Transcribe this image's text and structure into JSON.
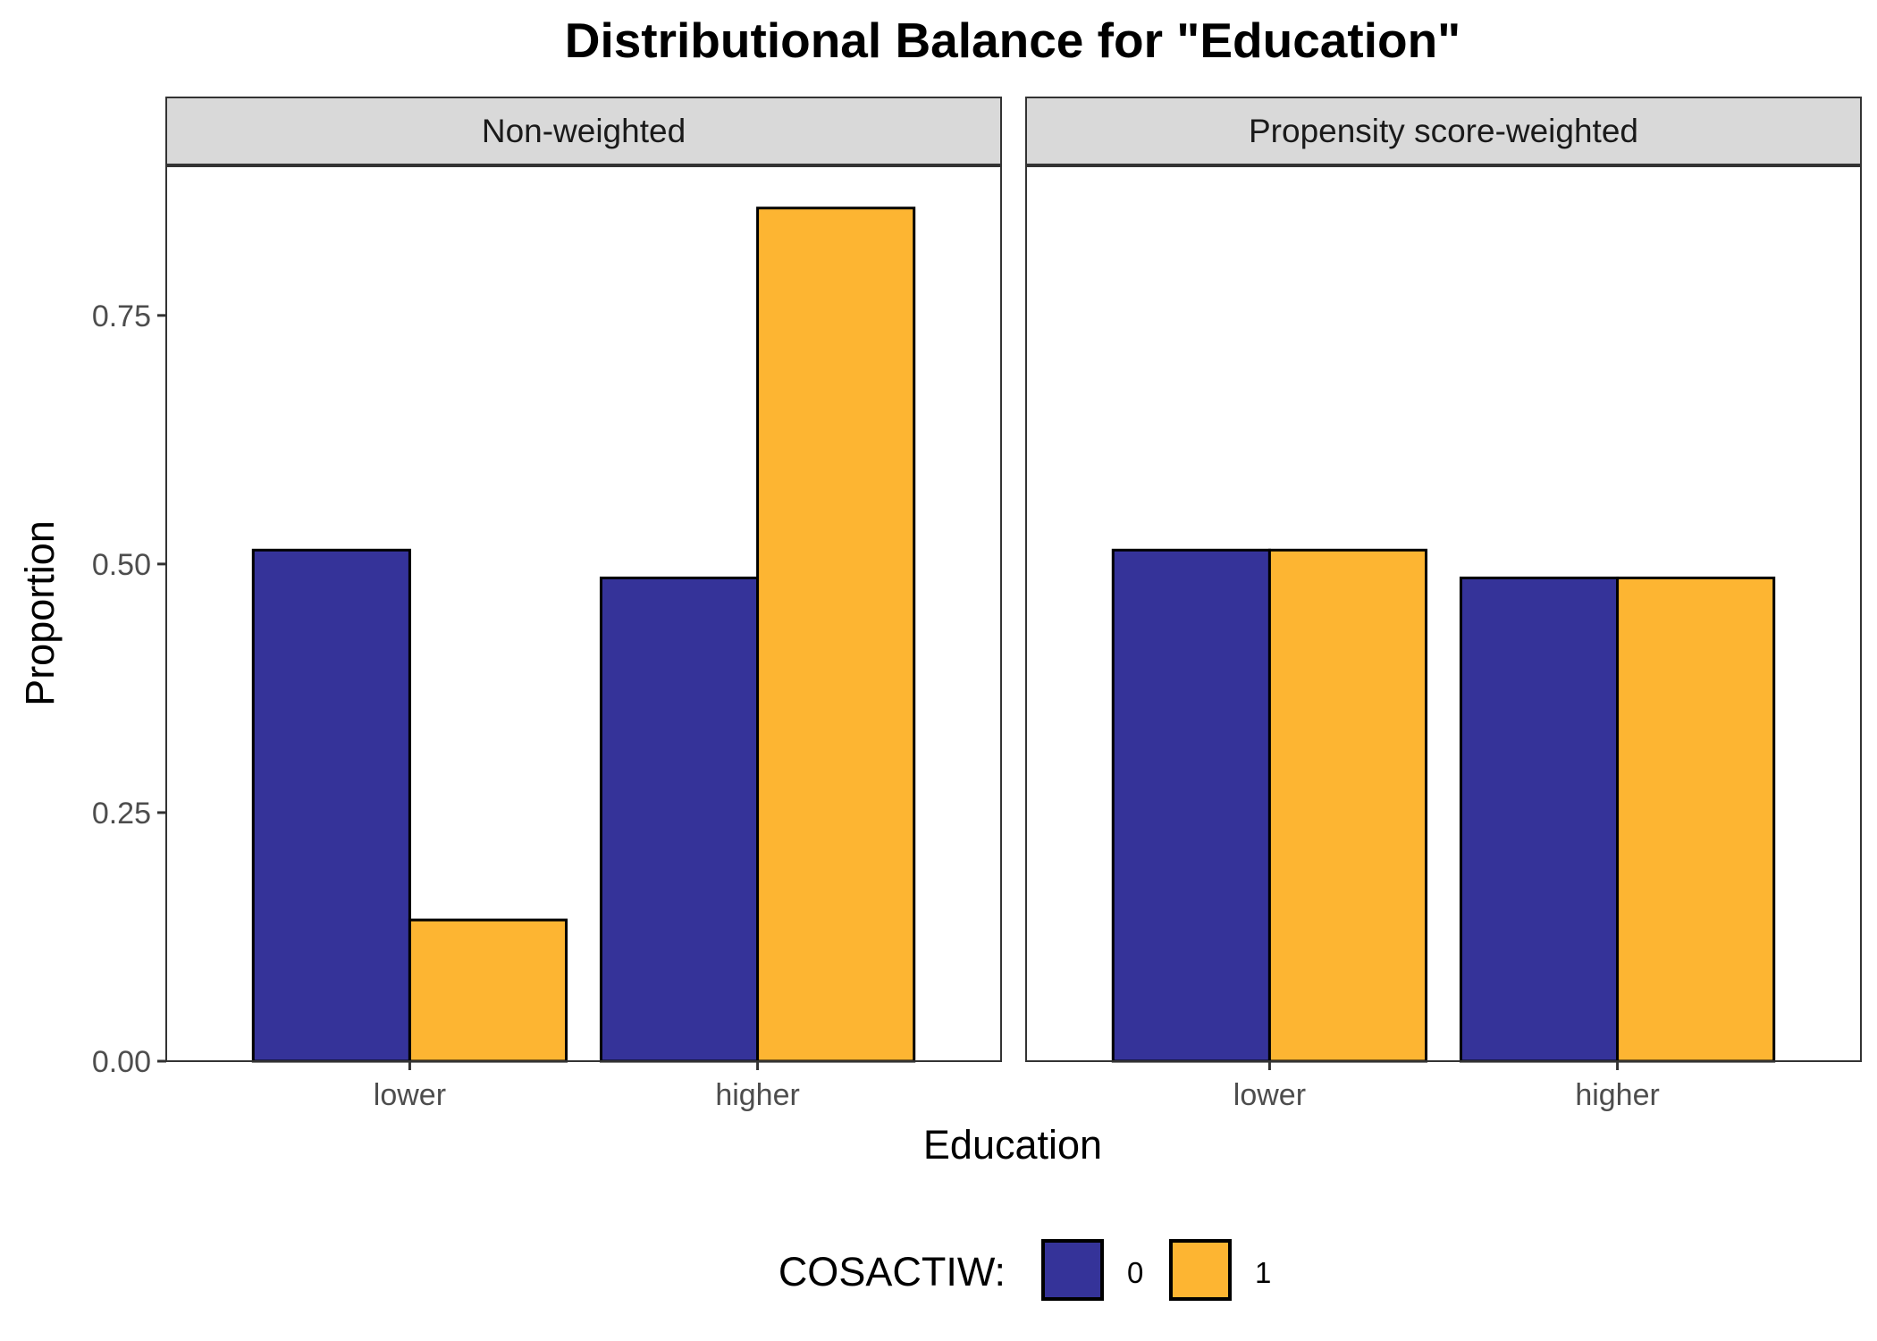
{
  "chart_data": {
    "type": "bar",
    "title": "Distributional Balance for \"Education\"",
    "xlabel": "Education",
    "ylabel": "Proportion",
    "ylim": [
      0,
      0.9
    ],
    "y_ticks": [
      0,
      0.25,
      0.5,
      0.75
    ],
    "y_tick_labels": [
      "0.00",
      "0.25",
      "0.50",
      "0.75"
    ],
    "categories": [
      "lower",
      "higher"
    ],
    "panels": [
      {
        "name": "Non-weighted",
        "series": [
          {
            "name": "0",
            "values": [
              0.514,
              0.486
            ]
          },
          {
            "name": "1",
            "values": [
              0.142,
              0.858
            ]
          }
        ]
      },
      {
        "name": "Propensity score-weighted",
        "series": [
          {
            "name": "0",
            "values": [
              0.514,
              0.486
            ]
          },
          {
            "name": "1",
            "values": [
              0.514,
              0.486
            ]
          }
        ]
      }
    ],
    "legend": {
      "title": "COSACTIW:",
      "position": "bottom",
      "entries": [
        {
          "label": "0",
          "color": "#353399"
        },
        {
          "label": "1",
          "color": "#FDB532"
        }
      ]
    },
    "grid": false
  }
}
